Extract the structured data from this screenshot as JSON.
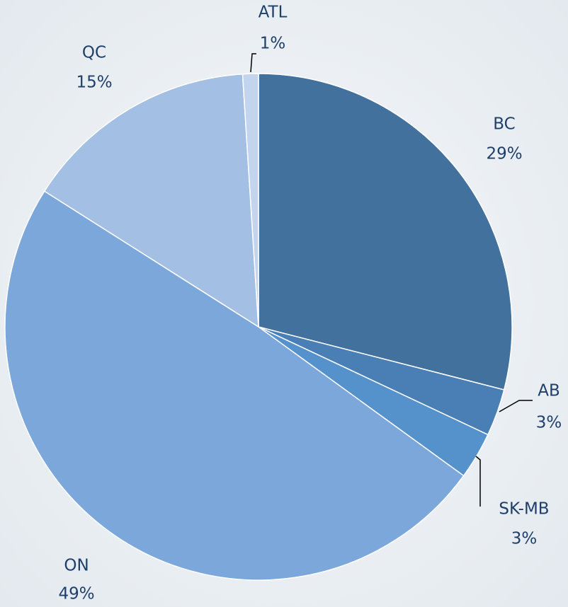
{
  "chart_data": {
    "type": "pie",
    "categories": [
      "BC",
      "AB",
      "SK-MB",
      "ON",
      "QC",
      "ATL"
    ],
    "values": [
      29,
      3,
      3,
      49,
      15,
      1
    ],
    "value_labels": [
      "29%",
      "3%",
      "3%",
      "49%",
      "15%",
      "1%"
    ],
    "colors": [
      "#41719c",
      "#4a7fb5",
      "#5592cc",
      "#7ba7db",
      "#a3bfe3",
      "#c2d4ee"
    ]
  }
}
